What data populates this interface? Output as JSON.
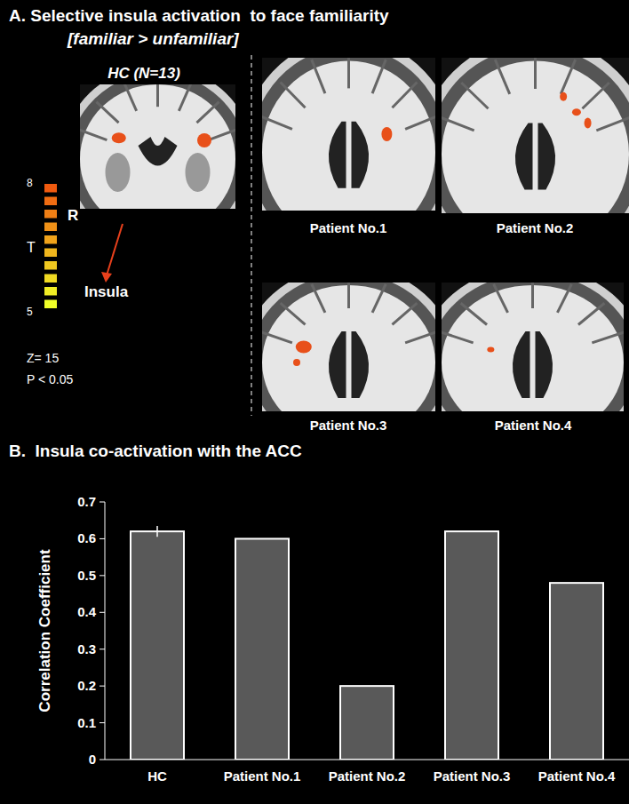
{
  "panel_a": {
    "title": "A. Selective insula activation  to face familiarity",
    "subtitle": "[familiar > unfamiliar]",
    "hc_label": "HC (N=13)",
    "orientation_label": "R",
    "region_label": "Insula",
    "slice": "Z= 15",
    "threshold": "P < 0.05",
    "colorbar": {
      "label": "T",
      "range": [
        5,
        8
      ],
      "ticks": [
        5,
        8
      ]
    },
    "patients": [
      "Patient No.1",
      "Patient No.2",
      "Patient No.3",
      "Patient No.4"
    ]
  },
  "chart_data": {
    "type": "bar",
    "title": "B.  Insula co-activation with the ACC",
    "y_label": "Correlation Coefficient",
    "categories": [
      "HC",
      "Patient No.1",
      "Patient No.2",
      "Patient No.3",
      "Patient No.4"
    ],
    "values": [
      0.62,
      0.6,
      0.2,
      0.62,
      0.48
    ],
    "errors": [
      0.015,
      null,
      null,
      null,
      null
    ],
    "color": "#595959",
    "ylim": [
      0,
      0.7
    ],
    "yticks": [
      0,
      0.1,
      0.2,
      0.3,
      0.4,
      0.5,
      0.6,
      0.7
    ],
    "grid": false
  }
}
